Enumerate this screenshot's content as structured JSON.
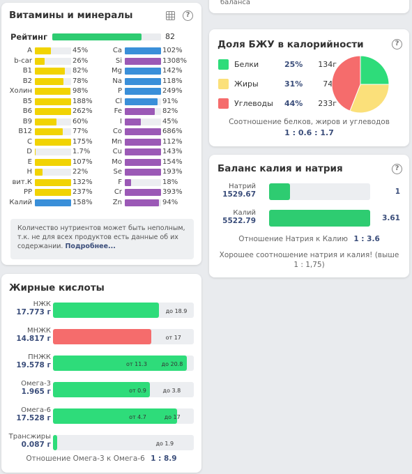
{
  "top_right_partial": {
    "text": "баланса"
  },
  "vitamins": {
    "title": "Витамины и минералы",
    "rating_label": "Рейтинг",
    "rating_value": "82",
    "rating_fraction": 0.82,
    "left": [
      {
        "name": "A",
        "value": "45%",
        "fill": 0.45,
        "color": "#f1d303"
      },
      {
        "name": "b-car",
        "value": "26%",
        "fill": 0.26,
        "color": "#f1d303"
      },
      {
        "name": "B1",
        "value": "82%",
        "fill": 0.82,
        "color": "#f1d303"
      },
      {
        "name": "B2",
        "value": "78%",
        "fill": 0.78,
        "color": "#f1d303"
      },
      {
        "name": "Холин",
        "value": "98%",
        "fill": 0.98,
        "color": "#f1d303"
      },
      {
        "name": "B5",
        "value": "188%",
        "fill": 1,
        "color": "#f1d303"
      },
      {
        "name": "B6",
        "value": "262%",
        "fill": 1,
        "color": "#f1d303"
      },
      {
        "name": "B9",
        "value": "60%",
        "fill": 0.6,
        "color": "#f1d303"
      },
      {
        "name": "B12",
        "value": "77%",
        "fill": 0.77,
        "color": "#f1d303"
      },
      {
        "name": "C",
        "value": "175%",
        "fill": 1,
        "color": "#f1d303"
      },
      {
        "name": "D",
        "value": "1.7%",
        "fill": 0.017,
        "color": "#f1d303"
      },
      {
        "name": "E",
        "value": "107%",
        "fill": 1,
        "color": "#f1d303"
      },
      {
        "name": "H",
        "value": "22%",
        "fill": 0.22,
        "color": "#f1d303"
      },
      {
        "name": "вит.К",
        "value": "132%",
        "fill": 1,
        "color": "#f1d303"
      },
      {
        "name": "PP",
        "value": "237%",
        "fill": 1,
        "color": "#f1d303"
      },
      {
        "name": "Калий",
        "value": "158%",
        "fill": 1,
        "color": "#3a8fd9"
      }
    ],
    "right": [
      {
        "name": "Ca",
        "value": "102%",
        "fill": 1,
        "color": "#3a8fd9"
      },
      {
        "name": "Si",
        "value": "1308%",
        "fill": 1,
        "color": "#9b59b6"
      },
      {
        "name": "Mg",
        "value": "142%",
        "fill": 1,
        "color": "#3a8fd9"
      },
      {
        "name": "Na",
        "value": "118%",
        "fill": 1,
        "color": "#3a8fd9"
      },
      {
        "name": "P",
        "value": "249%",
        "fill": 1,
        "color": "#3a8fd9"
      },
      {
        "name": "Cl",
        "value": "91%",
        "fill": 0.91,
        "color": "#3a8fd9"
      },
      {
        "name": "Fe",
        "value": "82%",
        "fill": 0.82,
        "color": "#9b59b6"
      },
      {
        "name": "I",
        "value": "45%",
        "fill": 0.45,
        "color": "#9b59b6"
      },
      {
        "name": "Co",
        "value": "686%",
        "fill": 1,
        "color": "#9b59b6"
      },
      {
        "name": "Mn",
        "value": "112%",
        "fill": 1,
        "color": "#9b59b6"
      },
      {
        "name": "Cu",
        "value": "143%",
        "fill": 1,
        "color": "#9b59b6"
      },
      {
        "name": "Mo",
        "value": "154%",
        "fill": 1,
        "color": "#9b59b6"
      },
      {
        "name": "Se",
        "value": "193%",
        "fill": 1,
        "color": "#9b59b6"
      },
      {
        "name": "F",
        "value": "18%",
        "fill": 0.18,
        "color": "#9b59b6"
      },
      {
        "name": "Cr",
        "value": "393%",
        "fill": 1,
        "color": "#9b59b6"
      },
      {
        "name": "Zn",
        "value": "94%",
        "fill": 0.94,
        "color": "#9b59b6"
      }
    ],
    "note_text": "Количество нутриентов может быть неполным, т.к. не для всех продуктов есть данные об их содержании.",
    "note_link": "Подробнее..."
  },
  "fatty": {
    "title": "Жирные кислоты",
    "rows": [
      {
        "name": "НЖК",
        "value": "17.773 г",
        "fill": 0.75,
        "color": "#2edc7a",
        "tags": [
          {
            "text": "до 18.9",
            "pos": 0.8
          }
        ]
      },
      {
        "name": "МНЖК",
        "value": "14.817 г",
        "fill": 0.7,
        "color": "#f56c6c",
        "tags": [
          {
            "text": "от 17",
            "pos": 0.8
          }
        ]
      },
      {
        "name": "ПНЖК",
        "value": "19.578 г",
        "fill": 0.95,
        "color": "#2edc7a",
        "tags": [
          {
            "text": "от 11.3",
            "pos": 0.52
          },
          {
            "text": "до 20.8",
            "pos": 0.77
          }
        ]
      },
      {
        "name": "Омега-3",
        "value": "1.965 г",
        "fill": 0.69,
        "color": "#2edc7a",
        "tags": [
          {
            "text": "от 0.9",
            "pos": 0.54
          },
          {
            "text": "до 3.8",
            "pos": 0.78
          }
        ]
      },
      {
        "name": "Омега-6",
        "value": "17.528 г",
        "fill": 0.88,
        "color": "#2edc7a",
        "tags": [
          {
            "text": "от 4.7",
            "pos": 0.54
          },
          {
            "text": "до 17",
            "pos": 0.79
          }
        ]
      },
      {
        "name": "Трансжиры",
        "value": "0.087 г",
        "fill": 0.03,
        "color": "#2edc7a",
        "tags": [
          {
            "text": "до 1.9",
            "pos": 0.73
          }
        ]
      }
    ],
    "ratio_label": "Отношение Омега-3 к Омега-6",
    "ratio_value": "1 : 8.9"
  },
  "bju": {
    "title": "Доля БЖУ в калорийности",
    "items": [
      {
        "name": "Белки",
        "pct": "25%",
        "grams": "134г",
        "color": "#2edc7a",
        "share": 0.25
      },
      {
        "name": "Жиры",
        "pct": "31%",
        "grams": "74г",
        "color": "#fbe07a",
        "share": 0.31
      },
      {
        "name": "Углеводы",
        "pct": "44%",
        "grams": "233г",
        "color": "#f56c6c",
        "share": 0.44
      }
    ],
    "caption": "Соотношение белков, жиров и углеводов",
    "ratio": "1 : 0.6 : 1.7"
  },
  "kna": {
    "title": "Баланс калия и натрия",
    "rows": [
      {
        "name": "Натрий",
        "value": "1529.67",
        "fill": 0.21,
        "ratio": "1"
      },
      {
        "name": "Калий",
        "value": "5522.79",
        "fill": 1,
        "ratio": "3.61"
      }
    ],
    "ratio_label": "Отношение Натрия к Калию",
    "ratio_value": "1 : 3.6",
    "advice_line1": "Хорошее соотношение натрия и калия! (выше",
    "advice_line2": "1 : 1,75)"
  }
}
